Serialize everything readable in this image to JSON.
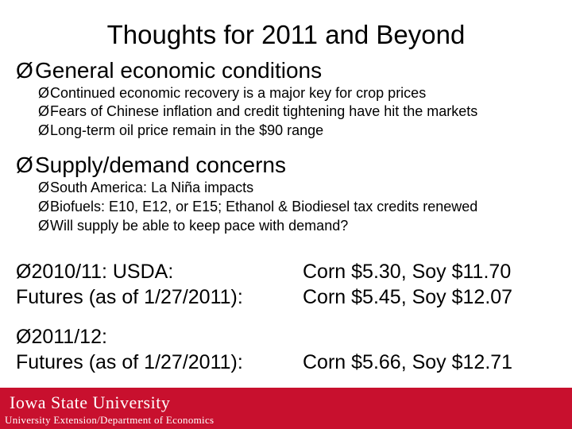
{
  "slide": {
    "title": "Thoughts for 2011 and Beyond",
    "sections": [
      {
        "heading": "General economic conditions",
        "bullets": [
          "Continued economic recovery is a major key for crop prices",
          "Fears of Chinese inflation and credit tightening have hit the markets",
          "Long-term oil price remain in the $90 range"
        ]
      },
      {
        "heading": "Supply/demand concerns",
        "bullets": [
          "South America: La Niña impacts",
          "Biofuels:  E10, E12, or E15; Ethanol & Biodiesel tax credits renewed",
          "Will supply be able to keep pace with demand?"
        ]
      }
    ],
    "prices": [
      {
        "left_line1": "2010/11:  USDA:",
        "left_line2": "Futures (as of 1/27/2011):",
        "right_line1": "Corn $5.30, Soy $11.70",
        "right_line2": "Corn $5.45, Soy $12.07"
      },
      {
        "left_line1": "2011/12:",
        "left_line2": "Futures (as of 1/27/2011):",
        "right_line1": "",
        "right_line2": "Corn $5.66, Soy $12.71"
      }
    ],
    "bullet_glyph": "Ø"
  },
  "footer": {
    "university_name": "Iowa State University",
    "department": "University Extension/Department of Economics",
    "brand_color": "#c8102e"
  }
}
